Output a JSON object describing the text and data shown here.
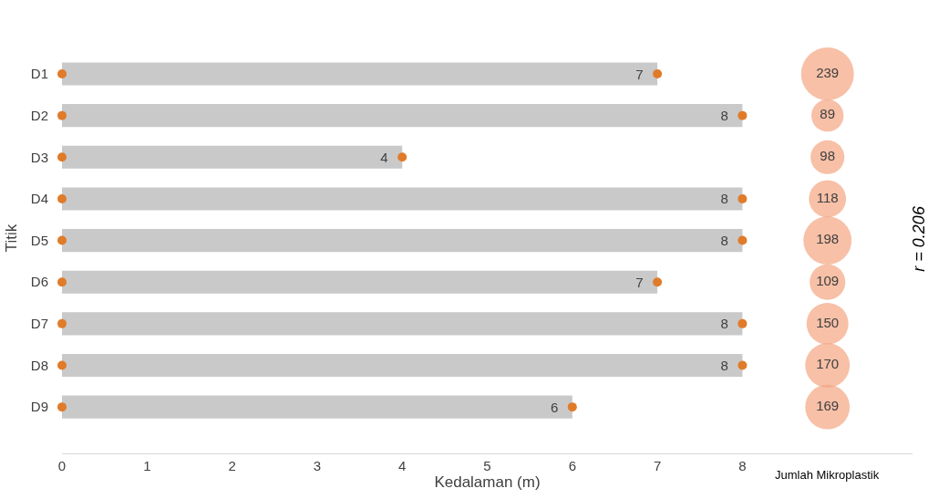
{
  "chart_data": {
    "type": "bar",
    "orientation": "horizontal",
    "categories": [
      "D1",
      "D2",
      "D3",
      "D4",
      "D5",
      "D6",
      "D7",
      "D8",
      "D9"
    ],
    "xlabel": "Kedalaman (m)",
    "ylabel": "Titik",
    "xlim": [
      0,
      10
    ],
    "xticks": [
      0,
      1,
      2,
      3,
      4,
      5,
      6,
      7,
      8
    ],
    "legend": false,
    "marker": "circle",
    "annotations": [
      "Jumlah Mikroplastik",
      "r = 0.206"
    ],
    "series": [
      {
        "color": "#c9c9c9",
        "values": [
          7,
          8,
          4,
          8,
          8,
          7,
          8,
          8,
          6
        ],
        "value_labels": [
          "7",
          "8",
          "4",
          "8",
          "8",
          "7",
          "8",
          "8",
          "6"
        ]
      },
      {
        "type": "scatter",
        "color": "#e07b2a",
        "values": [
          0,
          0,
          0,
          0,
          0,
          0,
          0,
          0,
          0
        ]
      },
      {
        "type": "scatter",
        "color": "#e07b2a",
        "values": [
          7,
          8,
          4,
          8,
          8,
          7,
          8,
          8,
          6
        ]
      },
      {
        "type": "bubble",
        "color": "#f4a582",
        "values": [
          9,
          9,
          9,
          9,
          9,
          9,
          9,
          9,
          9
        ],
        "sizes": [
          239,
          89,
          98,
          118,
          198,
          109,
          150,
          170,
          169
        ],
        "value_labels": [
          "239",
          "89",
          "98",
          "118",
          "198",
          "109",
          "150",
          "170",
          "169"
        ]
      }
    ]
  }
}
